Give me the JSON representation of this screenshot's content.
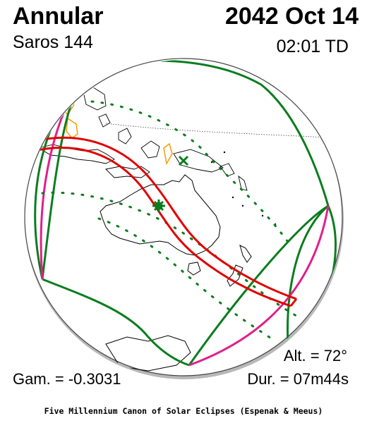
{
  "header": {
    "eclipse_type": "Annular",
    "saros": "Saros 144",
    "date": "2042 Oct 14",
    "time_td": "02:01 TD"
  },
  "stats": {
    "altitude": "Alt. = 72°",
    "gamma": "Gam. = -0.3031",
    "duration": "Dur. = 07m44s"
  },
  "footer": "Five Millennium Canon of Solar Eclipses (Espenak & Meeus)",
  "colors": {
    "central_path": "#e00000",
    "penumbral_limits": "#0a7d1e",
    "rise_set_curves": "#e0208a",
    "day_night_land": "#f0a000",
    "globe_edge": "#444444",
    "coastlines": "#000000"
  },
  "markers": {
    "greatest_eclipse": "green-asterisk",
    "subsolar_point": "green-x"
  }
}
